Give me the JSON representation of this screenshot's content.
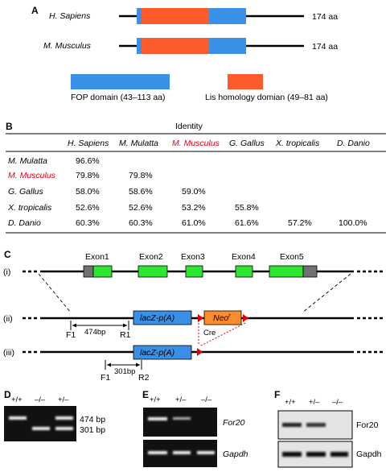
{
  "colors": {
    "fop_domain": "#3a8fe6",
    "lis_domain": "#ff5a2a",
    "exon": "#2ee632",
    "exon_dark": "#707070",
    "lacz": "#3a8fe6",
    "neo": "#ff8c2a",
    "loxp": "#e60000",
    "highlight_species": "#e6001a"
  },
  "panel_a": {
    "letter": "A",
    "proteins": [
      {
        "species": "H. Sapiens",
        "length": "174 aa"
      },
      {
        "species": "M. Musculus",
        "length": "174 aa"
      }
    ],
    "legend": [
      {
        "label": "FOP domain (43–113 aa)",
        "color_key": "fop_domain"
      },
      {
        "label": "Lis homology domian (49–81 aa)",
        "color_key": "lis_domain"
      }
    ]
  },
  "panel_b": {
    "letter": "B",
    "header": "Identity",
    "columns": [
      "H. Sapiens",
      "M. Mulatta",
      "M. Musculus",
      "G. Gallus",
      "X. tropicalis",
      "D. Danio"
    ],
    "rows": [
      {
        "species": "M. Mulatta",
        "values": [
          "96.6%",
          "",
          "",
          "",
          "",
          ""
        ]
      },
      {
        "species": "M. Musculus",
        "values": [
          "79.8%",
          "79.8%",
          "",
          "",
          "",
          ""
        ]
      },
      {
        "species": "G. Gallus",
        "values": [
          "58.0%",
          "58.6%",
          "59.0%",
          "",
          "",
          ""
        ]
      },
      {
        "species": "X. tropicalis",
        "values": [
          "52.6%",
          "52.6%",
          "53.2%",
          "55.8%",
          "",
          ""
        ]
      },
      {
        "species": "D. Danio",
        "values": [
          "60.3%",
          "60.3%",
          "61.0%",
          "61.6%",
          "57.2%",
          "100.0%"
        ]
      }
    ]
  },
  "panel_c": {
    "letter": "C",
    "exons": [
      "Exon1",
      "Exon2",
      "Exon3",
      "Exon4",
      "Exon5"
    ],
    "rows": [
      "(i)",
      "(ii)",
      "(iii)"
    ],
    "lacz_label": "lacZ-p(A)",
    "neo_label": "Neo",
    "neo_sup": "r",
    "cre_label": "Cre",
    "primers_ii": {
      "f": "F1",
      "r": "R1",
      "size": "474bp"
    },
    "primers_iii": {
      "f": "F1",
      "r": "R2",
      "size": "301bp"
    }
  },
  "panel_d": {
    "letter": "D",
    "lanes": [
      "+/+",
      "–/–",
      "+/–"
    ],
    "bands": [
      "474 bp",
      "301 bp"
    ]
  },
  "panel_e": {
    "letter": "E",
    "lanes": [
      "+/+",
      "+/–",
      "–/–"
    ],
    "genes": [
      "For20",
      "Gapdh"
    ]
  },
  "panel_f": {
    "letter": "F",
    "lanes": [
      "+/+",
      "+/–",
      "–/–"
    ],
    "genes": [
      "For20",
      "Gapdh"
    ]
  }
}
